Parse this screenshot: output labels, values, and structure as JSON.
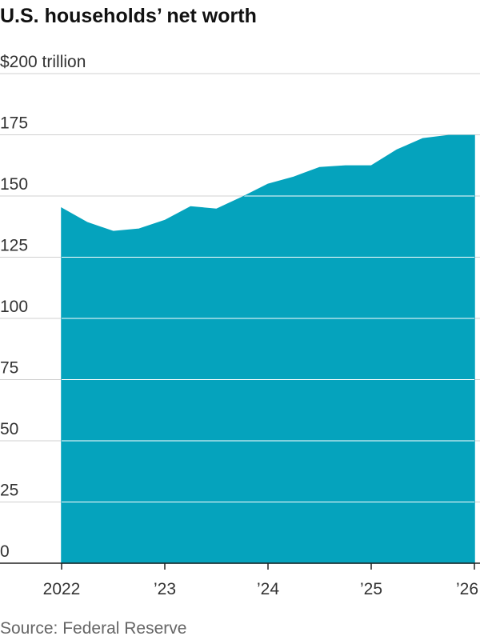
{
  "chart_data": {
    "type": "area",
    "title": "U.S. households’ net worth",
    "source": "Source: Federal Reserve",
    "x": [
      2022,
      2022.25,
      2022.5,
      2022.75,
      2023,
      2023.25,
      2023.5,
      2023.75,
      2024,
      2024.25,
      2024.5,
      2024.75,
      2025,
      2025.25,
      2025.5,
      2025.75,
      2026
    ],
    "values": [
      145.0,
      139.1,
      135.5,
      136.5,
      140.0,
      145.6,
      144.6,
      149.5,
      154.8,
      157.7,
      161.6,
      162.3,
      162.3,
      168.8,
      173.4,
      174.7,
      174.7
    ],
    "color": "#05a3bd",
    "xlim": [
      2022,
      2026
    ],
    "xticks": [
      2022,
      {
        "value": 2023,
        "label": "’23"
      },
      {
        "value": 2024,
        "label": "’24"
      },
      {
        "value": 2025,
        "label": "’25"
      },
      {
        "value": 2026,
        "label": "’26"
      }
    ],
    "ylim": [
      0,
      200
    ],
    "yticks": [
      0,
      25,
      50,
      75,
      100,
      125,
      150,
      175,
      {
        "value": 200,
        "label": "$200 trillion"
      }
    ],
    "grid": true
  }
}
